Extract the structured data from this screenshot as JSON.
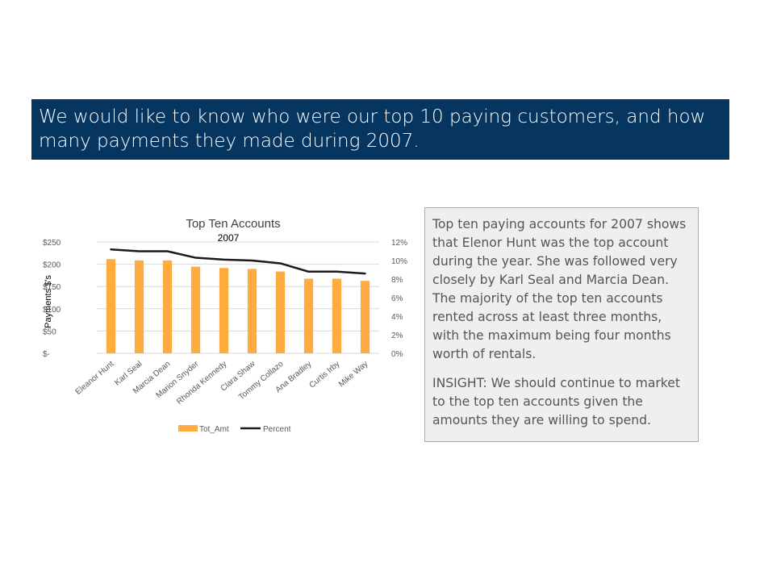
{
  "banner": {
    "text": "We would like to know who were our top 10 paying customers, and how many payments they made during 2007."
  },
  "insight": {
    "paragraph1": "Top ten paying accounts for 2007 shows that Elenor Hunt was the top account during the year. She was followed very closely by Karl Seal and Marcia Dean. The majority of the top ten accounts rented across at least three months, with the maximum being four months worth of rentals.",
    "paragraph2": "INSIGHT: We should continue to market to the top ten accounts given the amounts they are willing to spend."
  },
  "colors": {
    "banner_bg": "#063560",
    "bar": "#FFAB40",
    "line": "#1a1a1a",
    "insight_bg": "#efefef"
  },
  "chart_data": {
    "type": "bar",
    "title": "Top Ten Accounts",
    "subtitle": "2007",
    "ylabel": "Payments $'s",
    "categories": [
      "Eleanor Hunt",
      "Karl Seal",
      "Marcia Dean",
      "Marion Snyder",
      "Rhonda Kennedy",
      "Clara Shaw",
      "Tommy Collazo",
      "Ana Bradley",
      "Curtis Irby",
      "Mike Way"
    ],
    "series": [
      {
        "name": "Tot_Amt",
        "type": "bar",
        "axis": "left",
        "values": [
          211.55,
          208.58,
          208.58,
          194.61,
          191.62,
          189.6,
          183.63,
          167.67,
          167.62,
          162.67
        ]
      },
      {
        "name": "Percent",
        "type": "line",
        "axis": "right",
        "values": [
          11.2,
          11.0,
          11.0,
          10.3,
          10.1,
          10.0,
          9.7,
          8.8,
          8.8,
          8.6
        ]
      }
    ],
    "ylim": [
      0,
      250
    ],
    "yticks": [
      0,
      50,
      100,
      150,
      200,
      250
    ],
    "ytick_labels": [
      "$-",
      "$50",
      "$100",
      "$150",
      "$200",
      "$250"
    ],
    "y2lim": [
      0,
      12
    ],
    "y2ticks": [
      0,
      2,
      4,
      6,
      8,
      10,
      12
    ],
    "y2tick_labels": [
      "0%",
      "2%",
      "4%",
      "6%",
      "8%",
      "10%",
      "12%"
    ],
    "legend": {
      "position": "bottom",
      "entries": [
        "Tot_Amt",
        "Percent"
      ]
    },
    "grid": true
  }
}
